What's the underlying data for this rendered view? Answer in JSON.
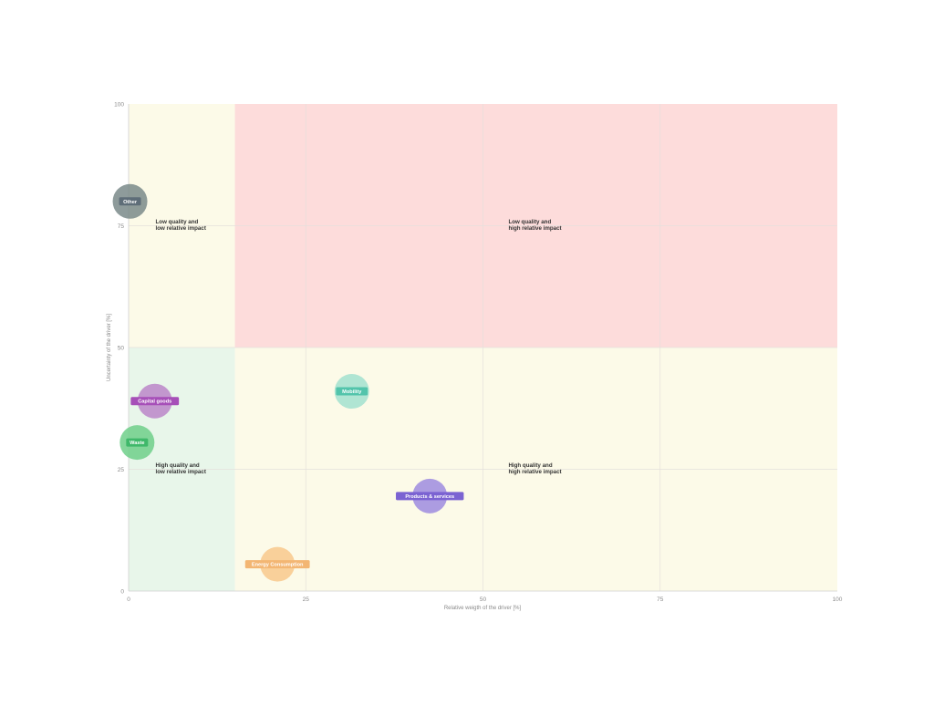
{
  "chart_data": {
    "type": "scatter",
    "xlabel": "Relative weigth of the driver [%]",
    "ylabel": "Uncertainty of the driver [%]",
    "xlim": [
      0,
      100
    ],
    "ylim": [
      0,
      100
    ],
    "x_ticks": [
      "0",
      "25",
      "50",
      "75",
      "100"
    ],
    "y_ticks": [
      "0",
      "25",
      "50",
      "75",
      "100"
    ],
    "grid": true,
    "regions": [
      {
        "name": "low-quality-low-impact",
        "x": [
          0,
          15
        ],
        "y": [
          50,
          100
        ],
        "color": "#fcfae8",
        "label": [
          "Low quality and",
          "low relative impact"
        ]
      },
      {
        "name": "low-quality-high-impact",
        "x": [
          15,
          100
        ],
        "y": [
          50,
          100
        ],
        "color": "#fddcdb",
        "label": [
          "Low quality and",
          "high relative impact"
        ]
      },
      {
        "name": "high-quality-low-impact",
        "x": [
          0,
          15
        ],
        "y": [
          0,
          50
        ],
        "color": "#e8f6ea",
        "label": [
          "High quality and",
          "low relative impact"
        ]
      },
      {
        "name": "high-quality-high-impact",
        "x": [
          15,
          100
        ],
        "y": [
          0,
          50
        ],
        "color": "#fcfae8",
        "label": [
          "High quality and",
          "high relative impact"
        ]
      }
    ],
    "points": [
      {
        "name": "Other",
        "x": 0.2,
        "y": 80,
        "color": "#7a8a8a",
        "label_color": "#5e6d78"
      },
      {
        "name": "Capital goods",
        "x": 3.7,
        "y": 39,
        "color": "#bb86c9",
        "label_color": "#a64fb8"
      },
      {
        "name": "Waste",
        "x": 1.2,
        "y": 30.5,
        "color": "#6fcf8a",
        "label_color": "#3fb86a"
      },
      {
        "name": "Mobility",
        "x": 31.5,
        "y": 41,
        "color": "#a2e0cf",
        "label_color": "#52c4ab"
      },
      {
        "name": "Products & services",
        "x": 42.5,
        "y": 19.5,
        "color": "#9d8bdf",
        "label_color": "#7b63d2"
      },
      {
        "name": "Energy Consumption",
        "x": 21,
        "y": 5.5,
        "color": "#f8c88c",
        "label_color": "#f3b673"
      }
    ]
  }
}
